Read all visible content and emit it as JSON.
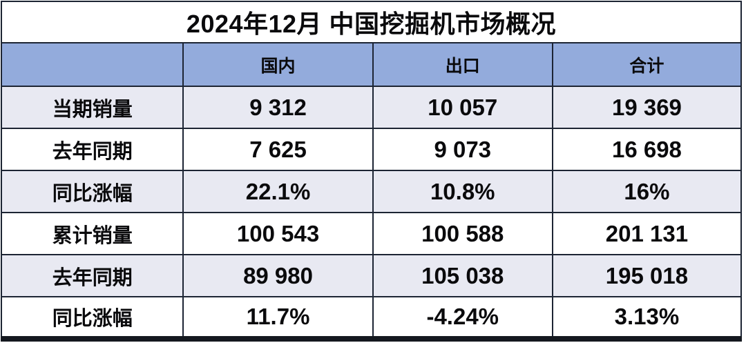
{
  "colors": {
    "header_bg": "#93ABDC",
    "row_alt_bg": "#E8E9F2",
    "grid_border": "#1C2433",
    "bottom_border": "#14181F",
    "title_text": "#000000",
    "cell_text": "#0A0A0C"
  },
  "chart_data": {
    "type": "table",
    "title": "2024年12月 中国挖掘机市场概况",
    "columns": [
      "",
      "国内",
      "出口",
      "合计"
    ],
    "rows": [
      [
        "当期销量",
        "9 312",
        "10 057",
        "19 369"
      ],
      [
        "去年同期",
        "7 625",
        "9 073",
        "16 698"
      ],
      [
        "同比涨幅",
        "22.1%",
        "10.8%",
        "16%"
      ],
      [
        "累计销量",
        "100 543",
        "100 588",
        "201 131"
      ],
      [
        "去年同期",
        "89 980",
        "105 038",
        "195 018"
      ],
      [
        "同比涨幅",
        "11.7%",
        "-4.24%",
        "3.13%"
      ]
    ]
  }
}
